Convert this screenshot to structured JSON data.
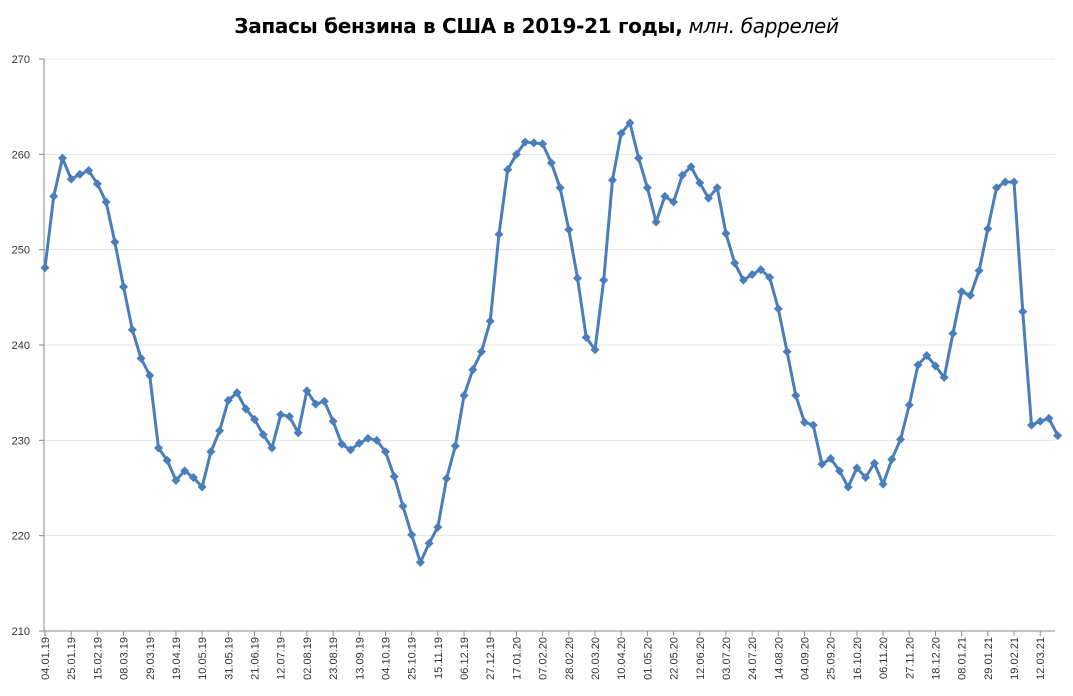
{
  "chart_data": {
    "type": "line",
    "title": "Запасы бензина в США в 2019-21 годы,",
    "title_unit": "млн. баррелей",
    "xlabel": "",
    "ylabel": "",
    "ylim": [
      210,
      270
    ],
    "yticks": [
      210,
      220,
      230,
      240,
      250,
      260,
      270
    ],
    "grid": true,
    "legend": "none",
    "x_label_step": 3,
    "x_labels": [
      "04.01.19",
      "25.01.19",
      "15.02.19",
      "08.03.19",
      "29.03.19",
      "19.04.19",
      "10.05.19",
      "31.05.19",
      "21.06.19",
      "12.07.19",
      "02.08.19",
      "23.08.19",
      "13.09.19",
      "04.10.19",
      "25.10.19",
      "15.11.19",
      "06.12.19",
      "27.12.19",
      "17.01.20",
      "07.02.20",
      "28.02.20",
      "20.03.20",
      "10.04.20",
      "01.05.20",
      "22.05.20",
      "12.06.20",
      "03.07.20",
      "24.07.20",
      "14.08.20",
      "04.09.20",
      "25.09.20",
      "16.10.20",
      "06.11.20",
      "27.11.20",
      "18.12.20",
      "08.01.21",
      "29.01.21",
      "19.02.21",
      "12.03.21"
    ],
    "series": [
      {
        "name": "Запасы бензина",
        "color": "#4a7ebb",
        "values": [
          248.1,
          255.6,
          259.6,
          257.4,
          257.9,
          258.3,
          256.9,
          255.0,
          250.8,
          246.1,
          241.6,
          238.6,
          236.8,
          229.2,
          227.9,
          225.8,
          226.8,
          226.1,
          225.1,
          228.8,
          231.0,
          234.2,
          235.0,
          233.3,
          232.2,
          230.6,
          229.2,
          232.7,
          232.5,
          230.8,
          235.2,
          233.8,
          234.1,
          232.0,
          229.6,
          229.0,
          229.7,
          230.2,
          230.0,
          228.8,
          226.2,
          223.1,
          220.1,
          217.2,
          219.2,
          220.9,
          226.0,
          229.4,
          234.7,
          237.4,
          239.3,
          242.5,
          251.6,
          258.4,
          260.0,
          261.3,
          261.2,
          261.1,
          259.1,
          256.5,
          252.1,
          247.0,
          240.8,
          239.5,
          246.8,
          257.3,
          262.2,
          263.3,
          259.6,
          256.5,
          252.9,
          255.6,
          255.0,
          257.8,
          258.7,
          257.0,
          255.4,
          256.5,
          251.7,
          248.6,
          246.8,
          247.4,
          247.9,
          247.1,
          243.8,
          239.3,
          234.7,
          231.9,
          231.6,
          227.5,
          228.1,
          226.8,
          225.1,
          227.1,
          226.1,
          227.6,
          225.4,
          228.0,
          230.1,
          233.7,
          237.9,
          238.9,
          237.8,
          236.6,
          241.2,
          245.6,
          245.2,
          247.8,
          252.2,
          256.5,
          257.1,
          257.1,
          243.5,
          231.6,
          232.0,
          232.3,
          230.5
        ]
      }
    ]
  }
}
